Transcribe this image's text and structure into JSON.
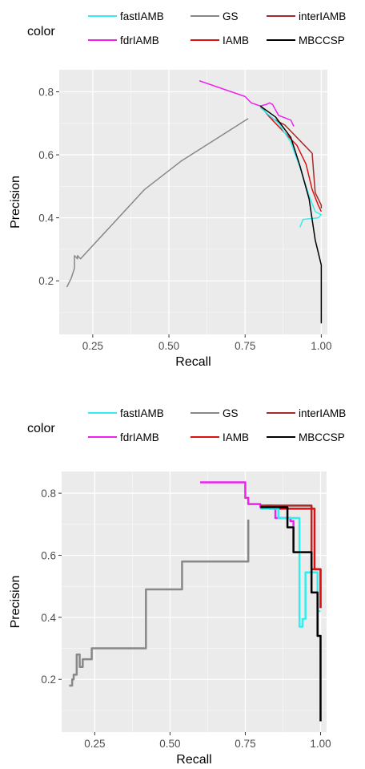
{
  "chart_data": [
    {
      "type": "line",
      "xlabel": "Recall",
      "ylabel": "Precision",
      "xlim": [
        0.14,
        1.02
      ],
      "ylim": [
        0.03,
        0.87
      ],
      "x_ticks": [
        0.25,
        0.5,
        0.75,
        1.0
      ],
      "x_tick_labels": [
        "0.25",
        "0.50",
        "0.75",
        "1.00"
      ],
      "y_ticks": [
        0.2,
        0.4,
        0.6,
        0.8
      ],
      "y_tick_labels": [
        "0.2",
        "0.4",
        "0.6",
        "0.8"
      ],
      "grid": true,
      "step": false,
      "legend": {
        "title": "color",
        "position": "top",
        "entries": [
          {
            "label": "fastIAMB",
            "color": "#33eeee"
          },
          {
            "label": "GS",
            "color": "#888888"
          },
          {
            "label": "interIAMB",
            "color": "#a52a2a"
          },
          {
            "label": "fdrIAMB",
            "color": "#ee22ee"
          },
          {
            "label": "IAMB",
            "color": "#dd1111"
          },
          {
            "label": "MBCCSP",
            "color": "#000000"
          }
        ]
      },
      "series": [
        {
          "name": "GS",
          "color": "#888888",
          "points": [
            [
              0.165,
              0.18
            ],
            [
              0.17,
              0.19
            ],
            [
              0.18,
              0.21
            ],
            [
              0.19,
              0.24
            ],
            [
              0.19,
              0.28
            ],
            [
              0.2,
              0.27
            ],
            [
              0.2,
              0.28
            ],
            [
              0.21,
              0.27
            ],
            [
              0.42,
              0.49
            ],
            [
              0.54,
              0.58
            ],
            [
              0.76,
              0.715
            ]
          ]
        },
        {
          "name": "fdrIAMB",
          "color": "#ee22ee",
          "points": [
            [
              0.6,
              0.835
            ],
            [
              0.75,
              0.785
            ],
            [
              0.77,
              0.765
            ],
            [
              0.8,
              0.755
            ],
            [
              0.82,
              0.76
            ],
            [
              0.83,
              0.765
            ],
            [
              0.84,
              0.76
            ],
            [
              0.86,
              0.725
            ],
            [
              0.9,
              0.71
            ],
            [
              0.91,
              0.69
            ]
          ]
        },
        {
          "name": "interIAMB",
          "color": "#a52a2a",
          "points": [
            [
              0.8,
              0.755
            ],
            [
              0.83,
              0.72
            ],
            [
              0.88,
              0.695
            ],
            [
              0.91,
              0.665
            ],
            [
              0.97,
              0.605
            ],
            [
              0.98,
              0.48
            ],
            [
              1.0,
              0.44
            ],
            [
              1.0,
              0.43
            ]
          ]
        },
        {
          "name": "IAMB",
          "color": "#dd1111",
          "points": [
            [
              0.8,
              0.755
            ],
            [
              0.84,
              0.71
            ],
            [
              0.88,
              0.67
            ],
            [
              0.92,
              0.63
            ],
            [
              0.95,
              0.57
            ],
            [
              0.97,
              0.49
            ],
            [
              0.99,
              0.44
            ],
            [
              1.0,
              0.42
            ]
          ]
        },
        {
          "name": "fastIAMB",
          "color": "#33eeee",
          "points": [
            [
              0.8,
              0.75
            ],
            [
              0.86,
              0.7
            ],
            [
              0.9,
              0.64
            ],
            [
              0.93,
              0.56
            ],
            [
              0.96,
              0.47
            ],
            [
              0.98,
              0.42
            ],
            [
              1.0,
              0.41
            ],
            [
              0.99,
              0.4
            ],
            [
              0.94,
              0.395
            ],
            [
              0.93,
              0.37
            ]
          ]
        },
        {
          "name": "MBCCSP",
          "color": "#000000",
          "points": [
            [
              0.8,
              0.755
            ],
            [
              0.85,
              0.72
            ],
            [
              0.9,
              0.655
            ],
            [
              0.93,
              0.565
            ],
            [
              0.96,
              0.46
            ],
            [
              0.98,
              0.33
            ],
            [
              1.0,
              0.25
            ],
            [
              1.0,
              0.065
            ]
          ]
        }
      ]
    },
    {
      "type": "line",
      "xlabel": "Recall",
      "ylabel": "Precision",
      "xlim": [
        0.14,
        1.02
      ],
      "ylim": [
        0.03,
        0.87
      ],
      "x_ticks": [
        0.25,
        0.5,
        0.75,
        1.0
      ],
      "x_tick_labels": [
        "0.25",
        "0.50",
        "0.75",
        "1.00"
      ],
      "y_ticks": [
        0.2,
        0.4,
        0.6,
        0.8
      ],
      "y_tick_labels": [
        "0.2",
        "0.4",
        "0.6",
        "0.8"
      ],
      "grid": true,
      "step": true,
      "legend": {
        "title": "color",
        "position": "top",
        "entries": [
          {
            "label": "fastIAMB",
            "color": "#33eeee"
          },
          {
            "label": "GS",
            "color": "#888888"
          },
          {
            "label": "interIAMB",
            "color": "#a52a2a"
          },
          {
            "label": "fdrIAMB",
            "color": "#ee22ee"
          },
          {
            "label": "IAMB",
            "color": "#dd1111"
          },
          {
            "label": "MBCCSP",
            "color": "#000000"
          }
        ]
      },
      "series": [
        {
          "name": "GS",
          "color": "#888888",
          "points": [
            [
              0.165,
              0.18
            ],
            [
              0.175,
              0.2
            ],
            [
              0.18,
              0.215
            ],
            [
              0.19,
              0.235
            ],
            [
              0.19,
              0.28
            ],
            [
              0.2,
              0.24
            ],
            [
              0.21,
              0.265
            ],
            [
              0.24,
              0.3
            ],
            [
              0.42,
              0.49
            ],
            [
              0.54,
              0.58
            ],
            [
              0.76,
              0.715
            ]
          ]
        },
        {
          "name": "fdrIAMB",
          "color": "#ee22ee",
          "points": [
            [
              0.6,
              0.835
            ],
            [
              0.75,
              0.785
            ],
            [
              0.76,
              0.765
            ],
            [
              0.8,
              0.755
            ],
            [
              0.82,
              0.76
            ],
            [
              0.84,
              0.755
            ],
            [
              0.85,
              0.72
            ],
            [
              0.9,
              0.71
            ],
            [
              0.91,
              0.69
            ]
          ]
        },
        {
          "name": "interIAMB",
          "color": "#a52a2a",
          "points": [
            [
              0.8,
              0.76
            ],
            [
              0.97,
              0.76
            ],
            [
              0.97,
              0.555
            ],
            [
              1.0,
              0.555
            ],
            [
              1.0,
              0.43
            ]
          ]
        },
        {
          "name": "IAMB",
          "color": "#dd1111",
          "points": [
            [
              0.8,
              0.755
            ],
            [
              0.83,
              0.75
            ],
            [
              0.96,
              0.75
            ],
            [
              0.98,
              0.555
            ],
            [
              1.0,
              0.555
            ],
            [
              1.0,
              0.43
            ]
          ]
        },
        {
          "name": "fastIAMB",
          "color": "#33eeee",
          "points": [
            [
              0.8,
              0.75
            ],
            [
              0.86,
              0.72
            ],
            [
              0.92,
              0.72
            ],
            [
              0.93,
              0.37
            ],
            [
              0.94,
              0.395
            ],
            [
              0.95,
              0.545
            ],
            [
              0.97,
              0.545
            ],
            [
              0.99,
              0.42
            ],
            [
              1.0,
              0.42
            ]
          ]
        },
        {
          "name": "MBCCSP",
          "color": "#000000",
          "points": [
            [
              0.8,
              0.755
            ],
            [
              0.89,
              0.69
            ],
            [
              0.91,
              0.61
            ],
            [
              0.96,
              0.61
            ],
            [
              0.97,
              0.48
            ],
            [
              0.99,
              0.34
            ],
            [
              1.0,
              0.065
            ]
          ]
        }
      ]
    }
  ]
}
